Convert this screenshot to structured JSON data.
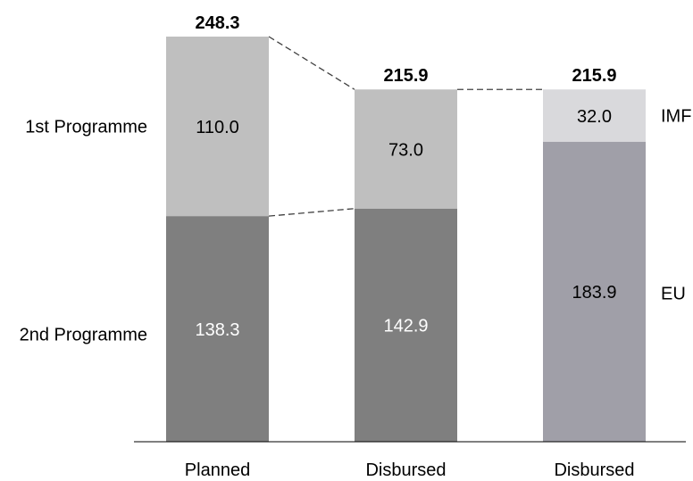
{
  "chart_data": {
    "type": "bar",
    "stacked": true,
    "title": "",
    "xlabel": "",
    "ylabel": "",
    "categories": [
      "Planned",
      "Disbursed",
      "Disbursed"
    ],
    "totals": [
      "248.3",
      "215.9",
      "215.9"
    ],
    "bars": [
      {
        "category": "Planned",
        "segments": [
          {
            "name": "2nd Programme",
            "value": 138.3,
            "label": "138.3",
            "color": "#7f7f7f",
            "label_color": "#ffffff"
          },
          {
            "name": "1st Programme",
            "value": 110.0,
            "label": "110.0",
            "color": "#bfbfbf",
            "label_color": "#000000"
          }
        ]
      },
      {
        "category": "Disbursed",
        "segments": [
          {
            "name": "2nd Programme",
            "value": 142.9,
            "label": "142.9",
            "color": "#7f7f7f",
            "label_color": "#ffffff"
          },
          {
            "name": "1st Programme",
            "value": 73.0,
            "label": "73.0",
            "color": "#bfbfbf",
            "label_color": "#000000"
          }
        ]
      },
      {
        "category": "Disbursed",
        "segments": [
          {
            "name": "EU",
            "value": 183.9,
            "label": "183.9",
            "color": "#a09fa8",
            "label_color": "#000000"
          },
          {
            "name": "IMF",
            "value": 32.0,
            "label": "32.0",
            "color": "#d9d9dc",
            "label_color": "#000000"
          }
        ]
      }
    ],
    "left_labels": [
      "1st Programme",
      "2nd Programme"
    ],
    "right_labels": [
      "IMF",
      "EU"
    ],
    "connectors": "dashed",
    "grid": false,
    "legend": "none"
  }
}
